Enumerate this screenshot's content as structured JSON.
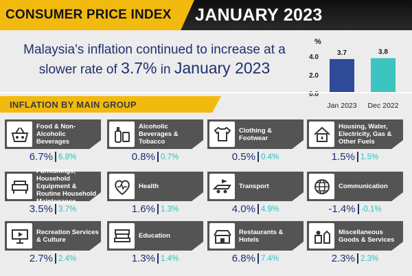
{
  "header": {
    "title": "CONSUMER PRICE INDEX",
    "month": "JANUARY 2023"
  },
  "headline": {
    "line1": "Malaysia's inflation continued to increase at a",
    "line2_a": "slower rate of ",
    "line2_rate": "3.7%",
    "line2_b": " in ",
    "line2_month": "January 2023"
  },
  "section_label": "INFLATION BY MAIN GROUP",
  "colors": {
    "accent_yellow": "#f2b90f",
    "navy": "#1d2f6f",
    "teal": "#2fbfb9",
    "bar_jan": "#2e4b9a",
    "bar_dec": "#3cc4c0",
    "card_head": "#545454"
  },
  "chart_data": {
    "type": "bar",
    "ylabel": "%",
    "ylim": [
      0,
      4.0
    ],
    "yticks": [
      "4.0",
      "2.0",
      "0.0"
    ],
    "categories": [
      "Jan 2023",
      "Dec 2022"
    ],
    "values": [
      3.7,
      3.8
    ],
    "value_labels": [
      "3.7",
      "3.8"
    ]
  },
  "groups": [
    {
      "label": "Food & Non-Alcoholic Beverages",
      "current": "6.7%",
      "previous": "6.8%",
      "icon": "food-basket-icon"
    },
    {
      "label": "Alcoholic Beverages & Tobacco",
      "current": "0.8%",
      "previous": "0.7%",
      "icon": "bottle-beer-icon"
    },
    {
      "label": "Clothing & Footwear",
      "current": "0.5%",
      "previous": "0.4%",
      "icon": "clothing-icon"
    },
    {
      "label": "Housing, Water, Electricity, Gas & Other Fuels",
      "current": "1.5%",
      "previous": "1.5%",
      "icon": "house-utilities-icon"
    },
    {
      "label": "Furnishings, Household Equipment & Routine Household Maintenance",
      "current": "3.5%",
      "previous": "3.7%",
      "icon": "furniture-icon"
    },
    {
      "label": "Health",
      "current": "1.6%",
      "previous": "1.3%",
      "icon": "health-icon"
    },
    {
      "label": "Transport",
      "current": "4.0%",
      "previous": "4.9%",
      "icon": "transport-icon"
    },
    {
      "label": "Communication",
      "current": "-1.4%",
      "previous": "-0.1%",
      "icon": "globe-icon"
    },
    {
      "label": "Recreation Services & Culture",
      "current": "2.7%",
      "previous": "2.4%",
      "icon": "recreation-icon"
    },
    {
      "label": "Education",
      "current": "1.3%",
      "previous": "1.4%",
      "icon": "books-icon"
    },
    {
      "label": "Restaurants & Hotels",
      "current": "6.8%",
      "previous": "7.4%",
      "icon": "restaurant-icon"
    },
    {
      "label": "Miscellaneous Goods & Services",
      "current": "2.3%",
      "previous": "2.3%",
      "icon": "misc-goods-icon"
    }
  ]
}
